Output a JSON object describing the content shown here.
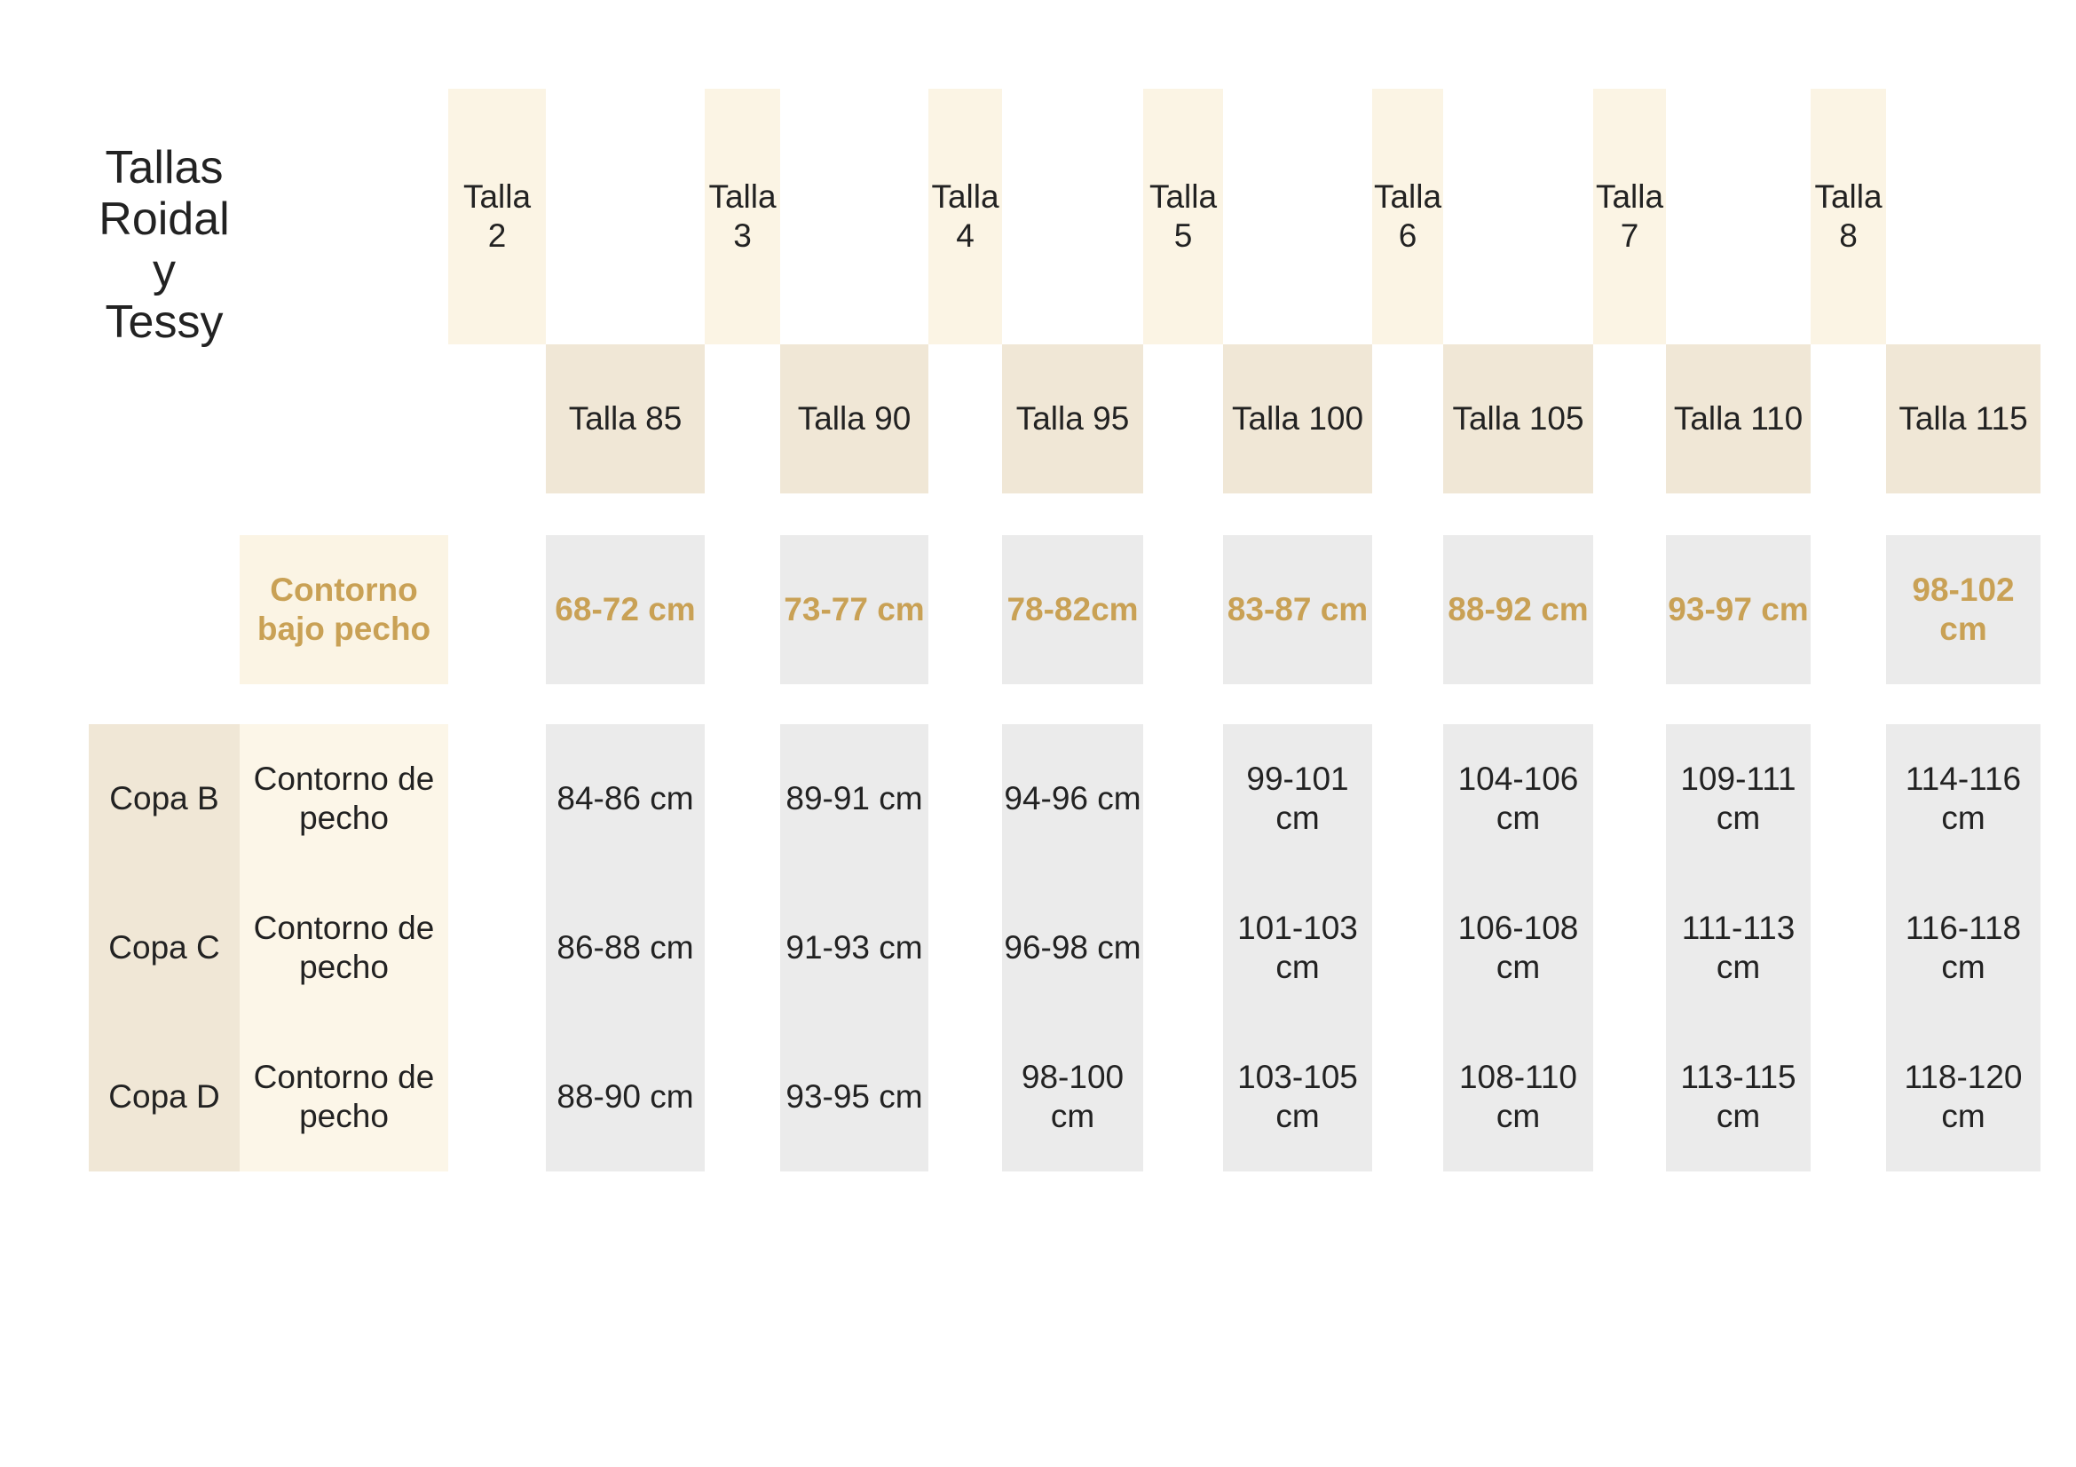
{
  "title": "Tallas\nRoidal\ny\nTessy",
  "talla_numbers": [
    "Talla\n2",
    "Talla\n3",
    "Talla\n4",
    "Talla\n5",
    "Talla\n6",
    "Talla\n7",
    "Talla\n8"
  ],
  "talla_sizes": [
    "Talla 85",
    "Talla 90",
    "Talla 95",
    "Talla 100",
    "Talla 105",
    "Talla 110",
    "Talla 115"
  ],
  "underbust": {
    "label": "Contorno\nbajo pecho",
    "values": [
      "68-72 cm",
      "73-77 cm",
      "78-82cm",
      "83-87 cm",
      "88-92 cm",
      "93-97 cm",
      "98-102\ncm"
    ]
  },
  "cups": [
    {
      "cup": "Copa B",
      "label": "Contorno de\npecho",
      "values": [
        "84-86 cm",
        "89-91 cm",
        "94-96 cm",
        "99-101\ncm",
        "104-106\ncm",
        "109-111\ncm",
        "114-116\ncm"
      ]
    },
    {
      "cup": "Copa C",
      "label": "Contorno de\npecho",
      "values": [
        "86-88 cm",
        "91-93 cm",
        "96-98 cm",
        "101-103\ncm",
        "106-108\ncm",
        "111-113\ncm",
        "116-118\ncm"
      ]
    },
    {
      "cup": "Copa D",
      "label": "Contorno de\npecho",
      "values": [
        "88-90 cm",
        "93-95 cm",
        "98-100\ncm",
        "103-105\ncm",
        "108-110\ncm",
        "113-115\ncm",
        "118-120\ncm"
      ]
    }
  ],
  "colors": {
    "accent_gold": "#c9a155",
    "light_cream": "#fbf4e4",
    "dark_cream": "#f0e7d6",
    "grey_cell": "#ebebeb"
  }
}
